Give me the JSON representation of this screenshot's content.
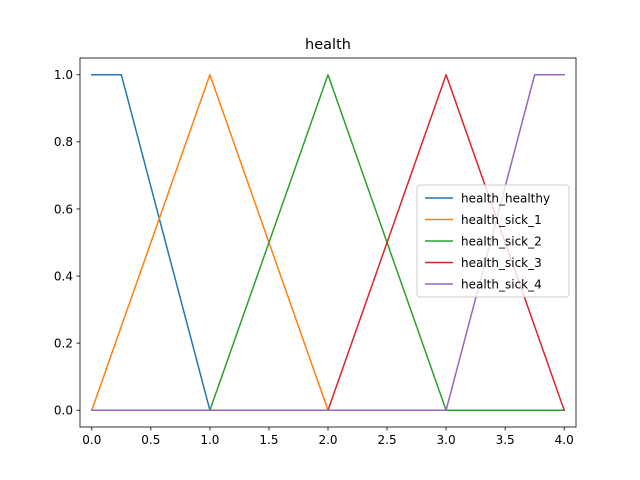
{
  "chart_data": {
    "type": "line",
    "title": "health",
    "xlabel": "",
    "ylabel": "",
    "xlim": [
      -0.1,
      4.1
    ],
    "ylim": [
      -0.05,
      1.05
    ],
    "xticks": [
      0.0,
      0.5,
      1.0,
      1.5,
      2.0,
      2.5,
      3.0,
      3.5,
      4.0
    ],
    "xtick_labels": [
      "0.0",
      "0.5",
      "1.0",
      "1.5",
      "2.0",
      "2.5",
      "3.0",
      "3.5",
      "4.0"
    ],
    "yticks": [
      0.0,
      0.2,
      0.4,
      0.6,
      0.8,
      1.0
    ],
    "ytick_labels": [
      "0.0",
      "0.2",
      "0.4",
      "0.6",
      "0.8",
      "1.0"
    ],
    "grid": false,
    "legend_position": "center-right",
    "series": [
      {
        "name": "health_healthy",
        "color": "#1f77b4",
        "x": [
          0,
          0.25,
          1,
          4
        ],
        "y": [
          1,
          1,
          0,
          0
        ]
      },
      {
        "name": "health_sick_1",
        "color": "#ff7f0e",
        "x": [
          0,
          1,
          2,
          4
        ],
        "y": [
          0,
          1,
          0,
          0
        ]
      },
      {
        "name": "health_sick_2",
        "color": "#2ca02c",
        "x": [
          0,
          1,
          2,
          3,
          4
        ],
        "y": [
          0,
          0,
          1,
          0,
          0
        ]
      },
      {
        "name": "health_sick_3",
        "color": "#d62728",
        "x": [
          0,
          2,
          3,
          4
        ],
        "y": [
          0,
          0,
          1,
          0
        ]
      },
      {
        "name": "health_sick_4",
        "color": "#9467bd",
        "x": [
          0,
          3,
          3.75,
          4
        ],
        "y": [
          0,
          0,
          1,
          1
        ]
      }
    ]
  }
}
